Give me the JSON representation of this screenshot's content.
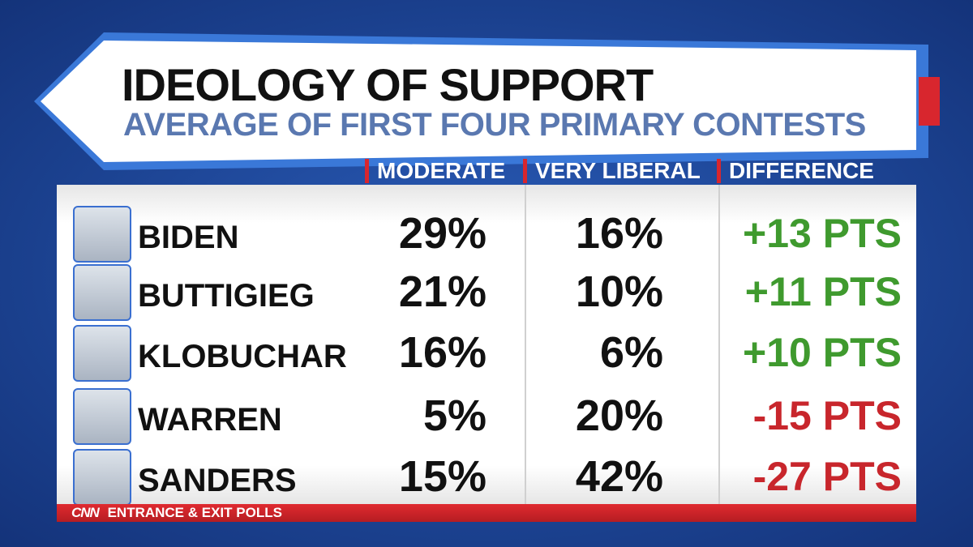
{
  "header": {
    "title": "IDEOLOGY OF SUPPORT",
    "subtitle": "AVERAGE OF FIRST FOUR PRIMARY CONTESTS"
  },
  "table": {
    "columns": [
      "MODERATE",
      "VERY LIBERAL",
      "DIFFERENCE"
    ],
    "rows": [
      {
        "name": "BIDEN",
        "moderate": "29%",
        "very_liberal": "16%",
        "difference": "+13 PTS",
        "color": "#3f9a2e"
      },
      {
        "name": "BUTTIGIEG",
        "moderate": "21%",
        "very_liberal": "10%",
        "difference": "+11 PTS",
        "color": "#3f9a2e"
      },
      {
        "name": "KLOBUCHAR",
        "moderate": "16%",
        "very_liberal": "6%",
        "difference": "+10 PTS",
        "color": "#3f9a2e"
      },
      {
        "name": "WARREN",
        "moderate": "5%",
        "very_liberal": "20%",
        "difference": "-15 PTS",
        "color": "#c8262c"
      },
      {
        "name": "SANDERS",
        "moderate": "15%",
        "very_liberal": "42%",
        "difference": "-27 PTS",
        "color": "#c8262c"
      }
    ]
  },
  "footer": {
    "logo": "CNN",
    "text": "ENTRANCE & EXIT POLLS"
  }
}
